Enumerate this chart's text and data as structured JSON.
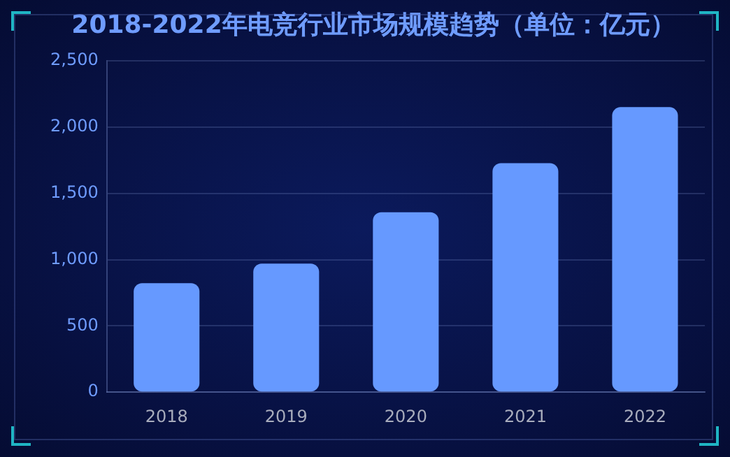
{
  "chart_data": {
    "type": "bar",
    "title": "2018-2022年电竞行业市场规模趋势（单位：亿元）",
    "categories": [
      "2018",
      "2019",
      "2020",
      "2021",
      "2022"
    ],
    "values": [
      823,
      970,
      1358,
      1728,
      2151
    ],
    "color": "#6699ff",
    "ylim": [
      0,
      2500
    ],
    "yticks": [
      {
        "value": 0,
        "label": "0"
      },
      {
        "value": 500,
        "label": "500"
      },
      {
        "value": 1000,
        "label": "1,000"
      },
      {
        "value": 1500,
        "label": "1,500"
      },
      {
        "value": 2000,
        "label": "2,000"
      },
      {
        "value": 2500,
        "label": "2,500"
      }
    ],
    "grid": "y"
  }
}
